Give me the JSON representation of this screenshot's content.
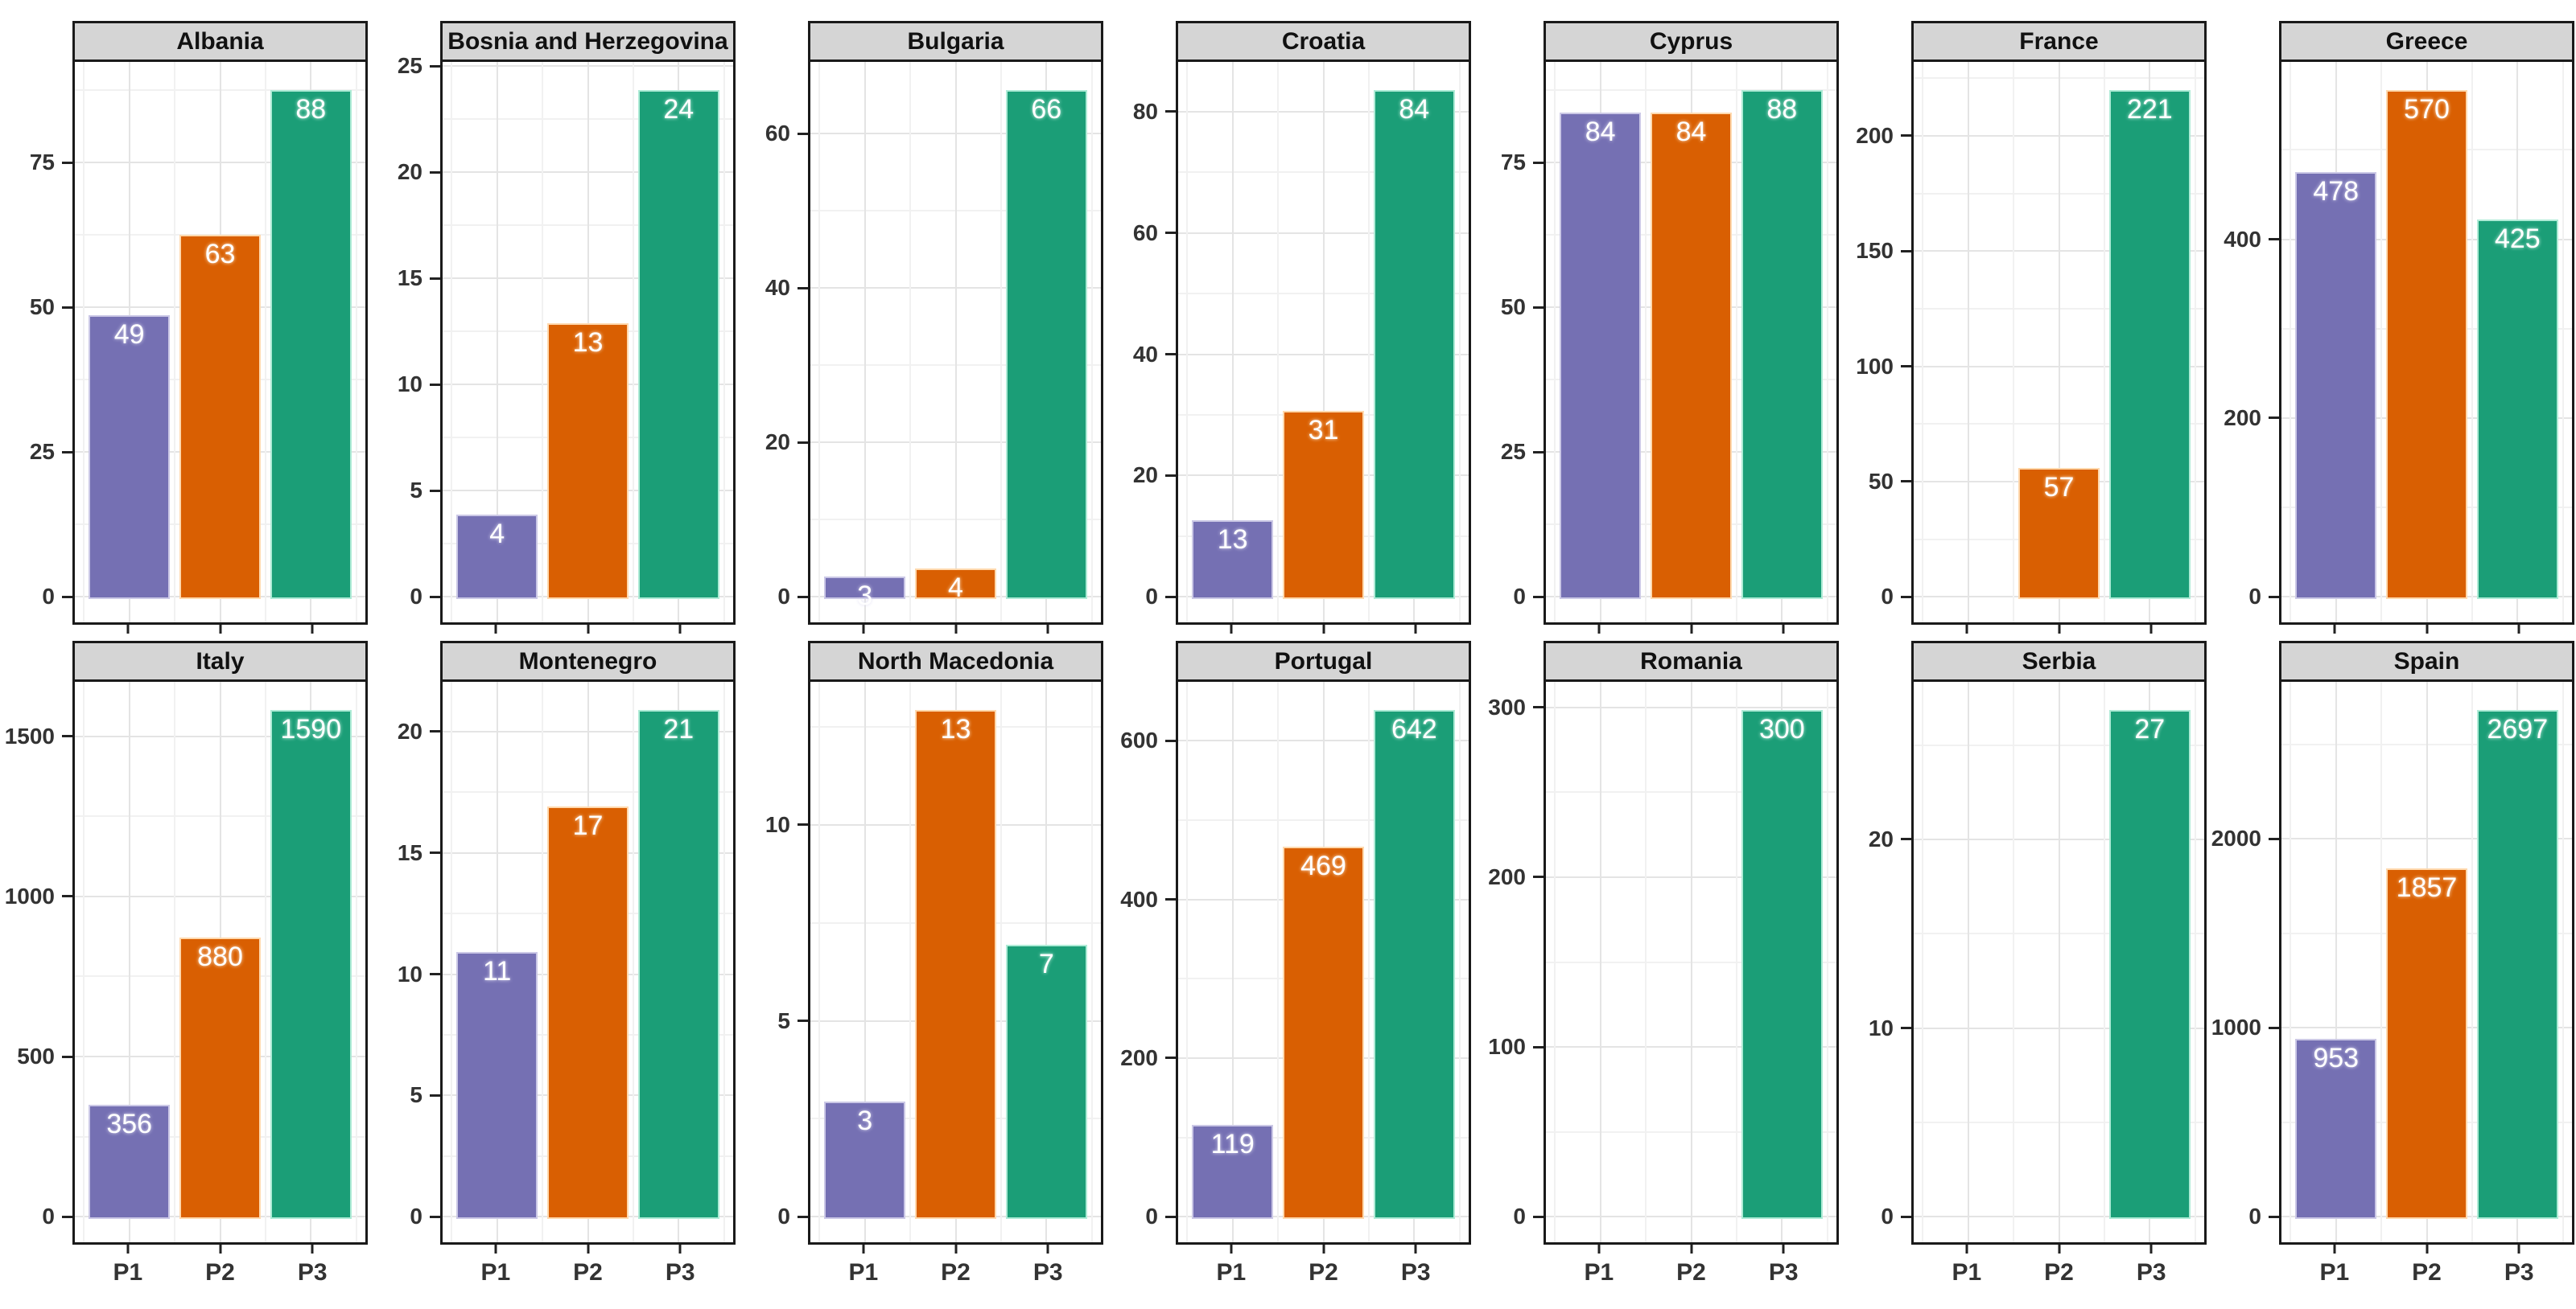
{
  "chart_data": {
    "type": "bar",
    "title": "",
    "categories": [
      "P1",
      "P2",
      "P3"
    ],
    "facet_layout": {
      "rows": 2,
      "cols": 7
    },
    "legend": "none",
    "grid": true,
    "series_colors": {
      "P1": "#7570B3",
      "P2": "#D95F02",
      "P3": "#1B9E77"
    },
    "bar_border_colors": {
      "P1": "#CBC8E6",
      "P2": "#FFD9AE",
      "P3": "#AEEBD6"
    },
    "bar_label_halo": {
      "P1": "#DEDCF0",
      "P2": "#FFE9CF",
      "P3": "#CFF3E6"
    },
    "style_colors": {
      "strip_bg": "#D5D5D5",
      "panel_border": "#1A1A1A",
      "grid_major": "#E4E4E4",
      "grid_minor": "#F1F1F1",
      "axis_text": "#333333",
      "bar_label": "#FFFFFF"
    },
    "panels": [
      {
        "title": "Albania",
        "values": [
          49,
          63,
          88
        ],
        "y_ticks": [
          0,
          25,
          50,
          75
        ]
      },
      {
        "title": "Bosnia and Herzegovina",
        "values": [
          4,
          13,
          24
        ],
        "y_ticks": [
          0,
          5,
          10,
          15,
          20,
          25
        ]
      },
      {
        "title": "Bulgaria",
        "values": [
          3,
          4,
          66
        ],
        "y_ticks": [
          0,
          20,
          40,
          60
        ]
      },
      {
        "title": "Croatia",
        "values": [
          13,
          31,
          84
        ],
        "y_ticks": [
          0,
          20,
          40,
          60,
          80
        ]
      },
      {
        "title": "Cyprus",
        "values": [
          84,
          84,
          88
        ],
        "y_ticks": [
          0,
          25,
          50,
          75
        ]
      },
      {
        "title": "France",
        "values": [
          null,
          57,
          221
        ],
        "y_ticks": [
          0,
          50,
          100,
          150,
          200
        ]
      },
      {
        "title": "Greece",
        "values": [
          478,
          570,
          425
        ],
        "y_ticks": [
          0,
          200,
          400
        ]
      },
      {
        "title": "Italy",
        "values": [
          356,
          880,
          1590
        ],
        "y_ticks": [
          0,
          500,
          1000,
          1500
        ]
      },
      {
        "title": "Montenegro",
        "values": [
          11,
          17,
          21
        ],
        "y_ticks": [
          0,
          5,
          10,
          15,
          20
        ]
      },
      {
        "title": "North Macedonia",
        "values": [
          3,
          13,
          7
        ],
        "y_ticks": [
          0,
          5,
          10
        ]
      },
      {
        "title": "Portugal",
        "values": [
          119,
          469,
          642
        ],
        "y_ticks": [
          0,
          200,
          400,
          600
        ]
      },
      {
        "title": "Romania",
        "values": [
          null,
          null,
          300
        ],
        "y_ticks": [
          0,
          100,
          200,
          300
        ]
      },
      {
        "title": "Serbia",
        "values": [
          null,
          null,
          27
        ],
        "y_ticks": [
          0,
          10,
          20
        ]
      },
      {
        "title": "Spain",
        "values": [
          953,
          1857,
          2697
        ],
        "y_ticks": [
          0,
          1000,
          2000
        ]
      }
    ]
  }
}
